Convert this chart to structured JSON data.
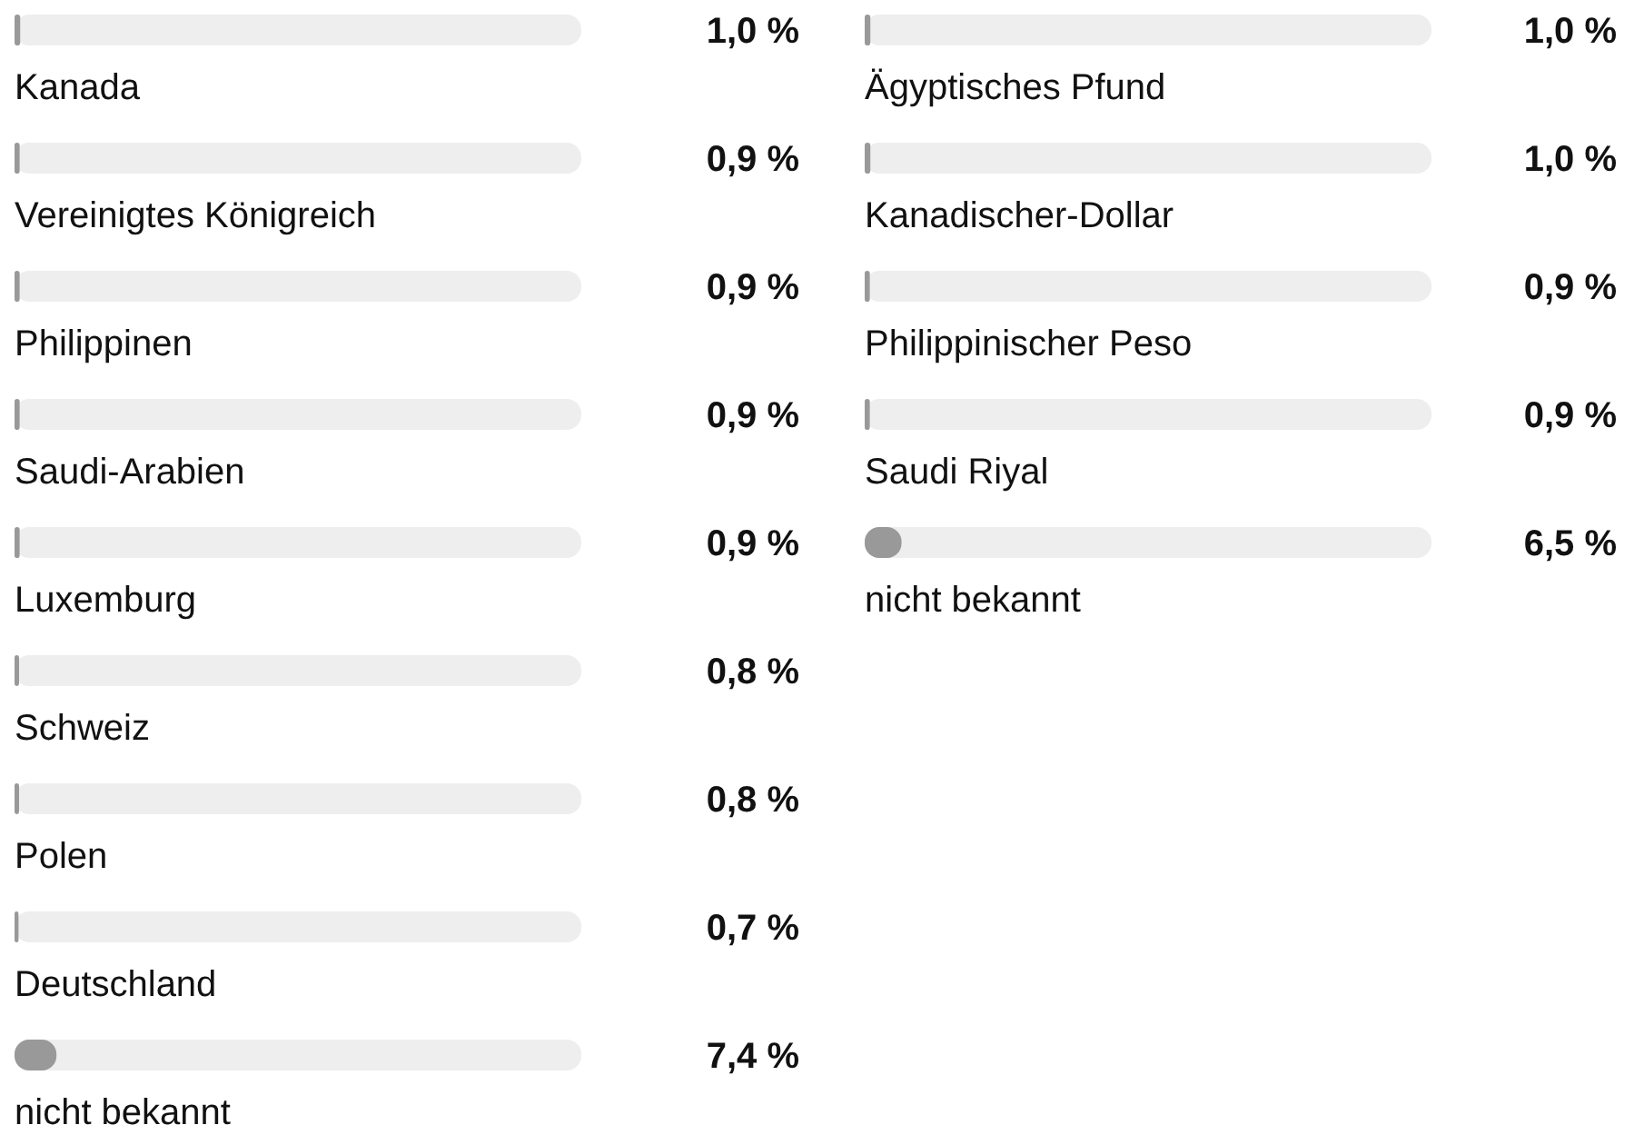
{
  "chart_data": [
    {
      "type": "bar",
      "orientation": "horizontal",
      "categories": [
        "Kanada",
        "Vereinigtes Königreich",
        "Philippinen",
        "Saudi-Arabien",
        "Luxemburg",
        "Schweiz",
        "Polen",
        "Deutschland",
        "nicht bekannt"
      ],
      "values": [
        1.0,
        0.9,
        0.9,
        0.9,
        0.9,
        0.8,
        0.8,
        0.7,
        7.4
      ],
      "value_labels": [
        "1,0 %",
        "0,9 %",
        "0,9 %",
        "0,9 %",
        "0,9 %",
        "0,8 %",
        "0,8 %",
        "0,7 %",
        "7,4 %"
      ],
      "color": "#999999",
      "xlim": [
        0,
        100
      ],
      "tick_labels": "y",
      "grid": false,
      "legend": false
    },
    {
      "type": "bar",
      "orientation": "horizontal",
      "categories": [
        "Ägyptisches Pfund",
        "Kanadischer-Dollar",
        "Philippinischer Peso",
        "Saudi Riyal",
        "nicht bekannt"
      ],
      "values": [
        1.0,
        1.0,
        0.9,
        0.9,
        6.5
      ],
      "value_labels": [
        "1,0 %",
        "1,0 %",
        "0,9 %",
        "0,9 %",
        "6,5 %"
      ],
      "color": "#999999",
      "xlim": [
        0,
        100
      ],
      "tick_labels": "y",
      "grid": false,
      "legend": false
    }
  ]
}
